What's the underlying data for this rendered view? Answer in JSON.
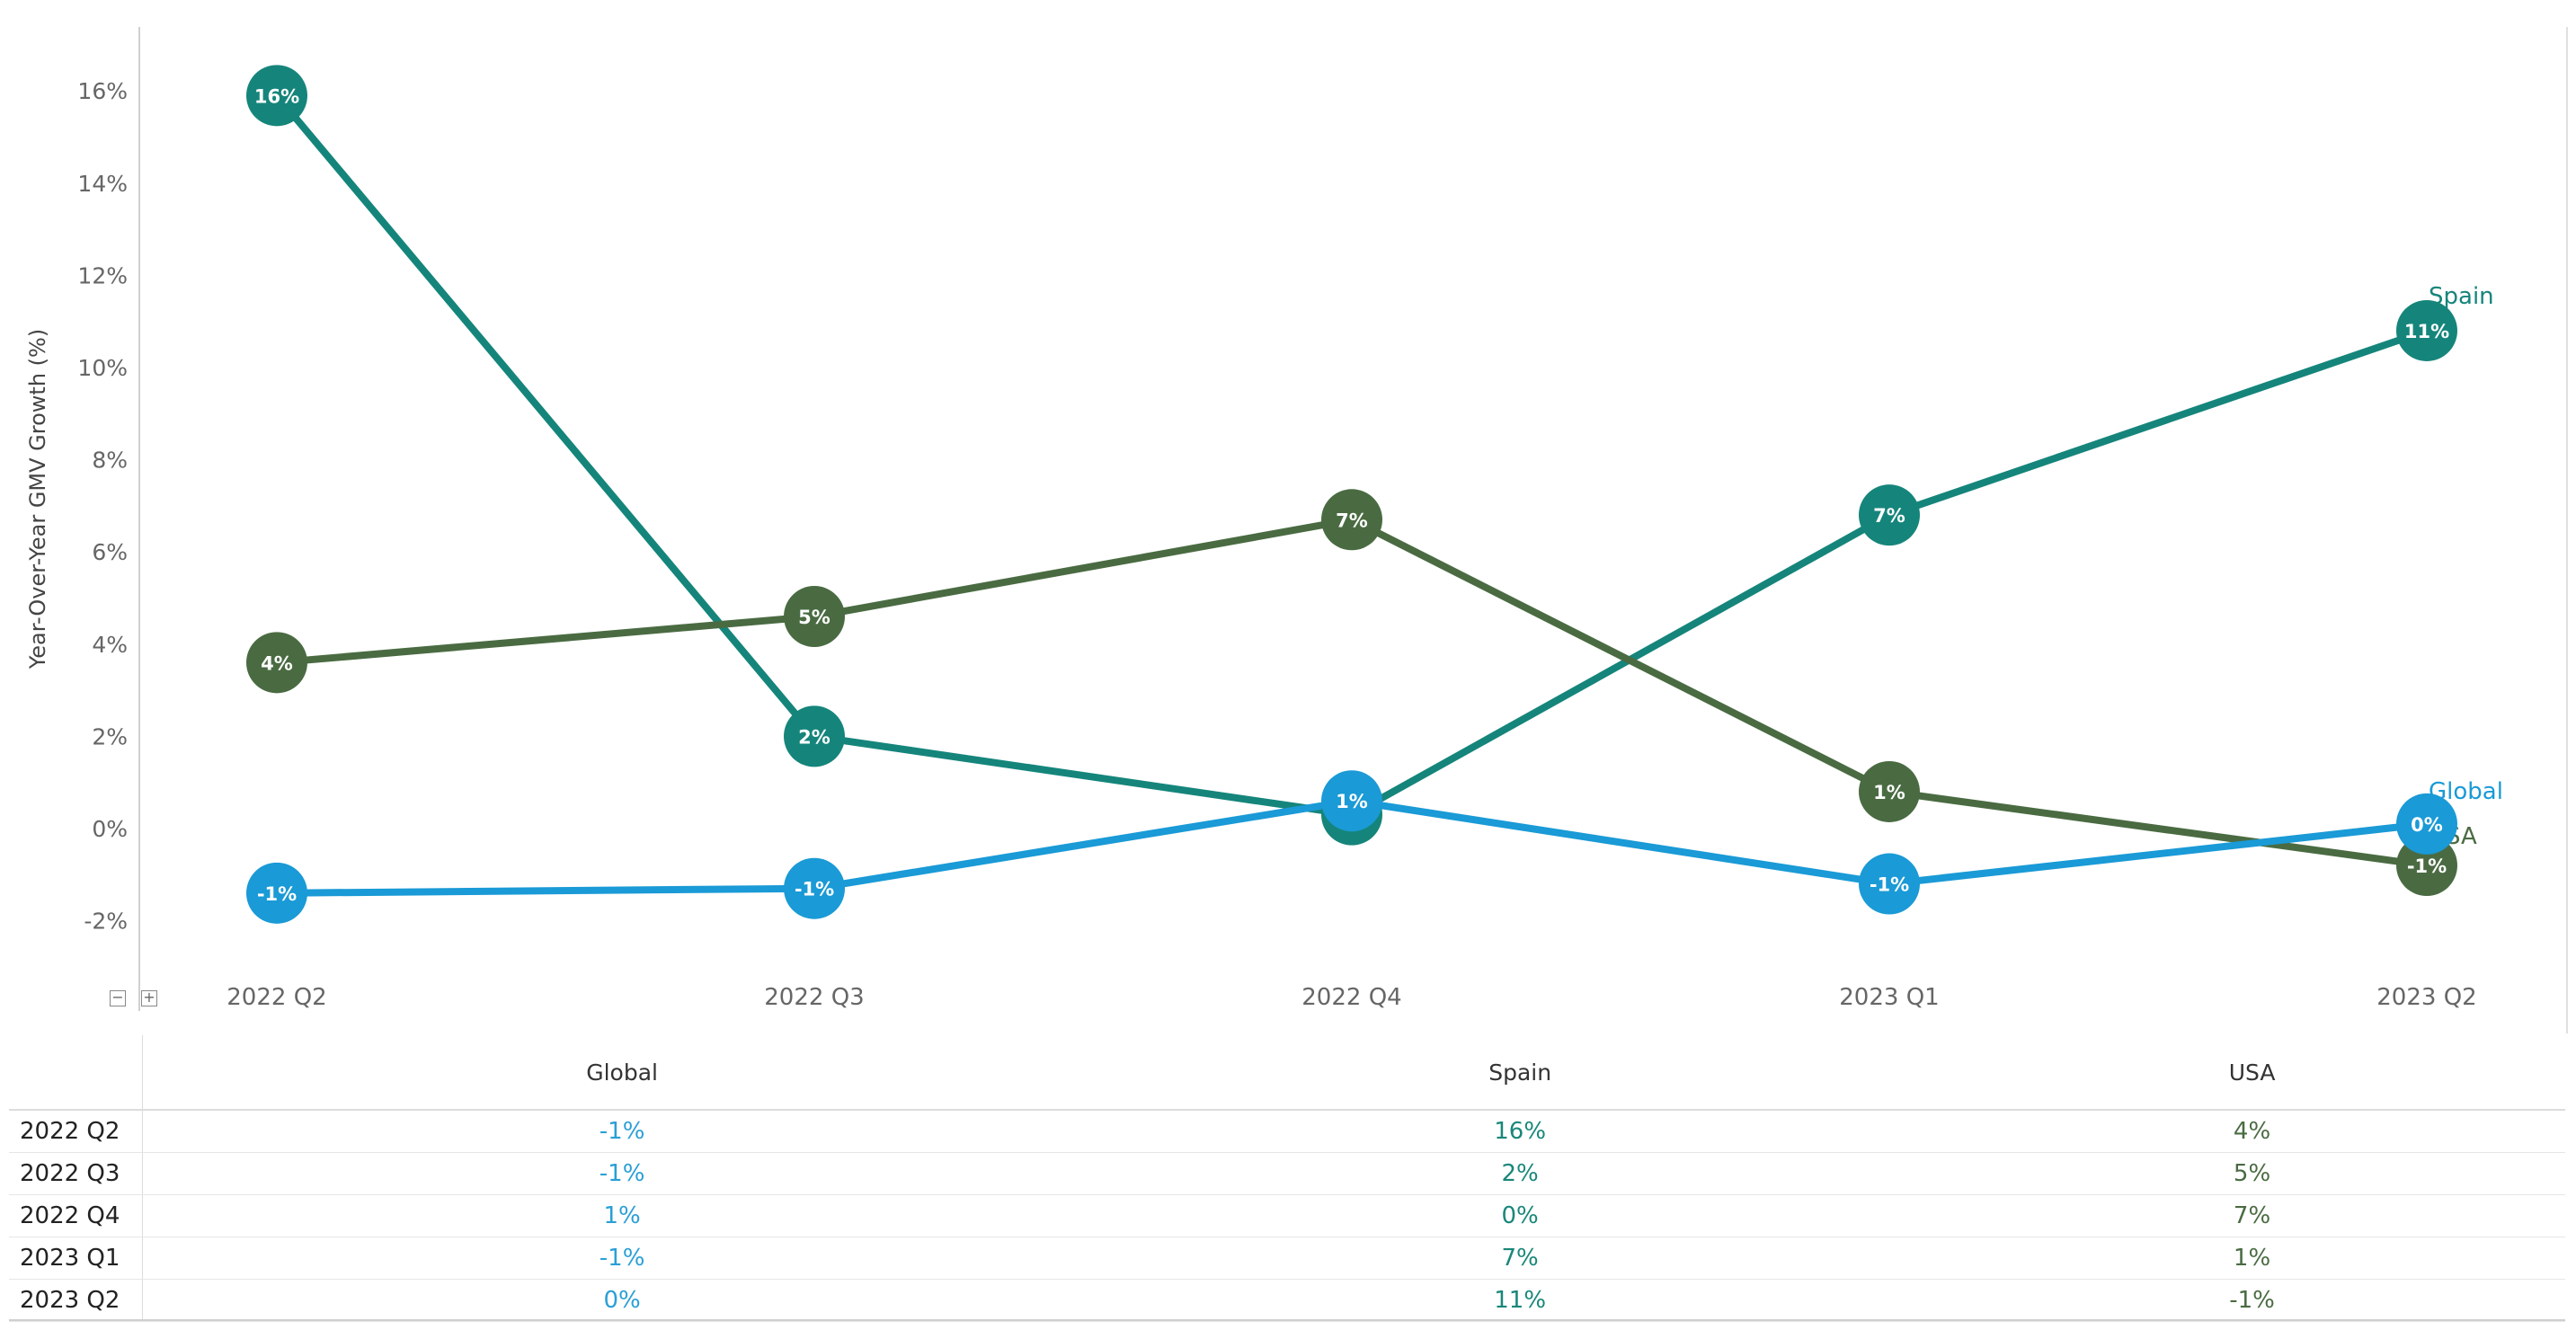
{
  "chart_data": {
    "type": "line",
    "ylabel": "Year-Over-Year GMV Growth (%)",
    "xlabel": "",
    "categories": [
      "2022 Q2",
      "2022 Q3",
      "2022 Q4",
      "2023 Q1",
      "2023 Q2"
    ],
    "yticks": [
      "-2%",
      "0%",
      "2%",
      "4%",
      "6%",
      "8%",
      "10%",
      "12%",
      "14%",
      "16%"
    ],
    "ylim": [
      -3.2,
      17.5
    ],
    "series": [
      {
        "name": "Spain",
        "color": "#15857b",
        "values": [
          15.9,
          2.0,
          0.3,
          6.8,
          10.8
        ],
        "labels": [
          "16%",
          "2%",
          "0%",
          "7%",
          "11%"
        ]
      },
      {
        "name": "USA",
        "color": "#4a6b42",
        "values": [
          3.6,
          4.6,
          6.7,
          0.8,
          -0.8
        ],
        "labels": [
          "4%",
          "5%",
          "7%",
          "1%",
          "-1%"
        ]
      },
      {
        "name": "Global",
        "color": "#1a9ad6",
        "values": [
          -1.4,
          -1.3,
          0.6,
          -1.2,
          0.1
        ],
        "labels": [
          "-1%",
          "-1%",
          "1%",
          "-1%",
          "0%"
        ]
      }
    ],
    "table": {
      "columns": [
        "Global",
        "Spain",
        "USA"
      ],
      "rows": [
        {
          "period": "2022 Q2",
          "values": [
            "-1%",
            "16%",
            "4%"
          ]
        },
        {
          "period": "2022 Q3",
          "values": [
            "-1%",
            "2%",
            "5%"
          ]
        },
        {
          "period": "2022 Q4",
          "values": [
            "1%",
            "0%",
            "7%"
          ]
        },
        {
          "period": "2023 Q1",
          "values": [
            "-1%",
            "7%",
            "1%"
          ]
        },
        {
          "period": "2023 Q2",
          "values": [
            "0%",
            "11%",
            "-1%"
          ]
        }
      ]
    }
  },
  "controls": {
    "collapse": "−",
    "expand": "+"
  }
}
